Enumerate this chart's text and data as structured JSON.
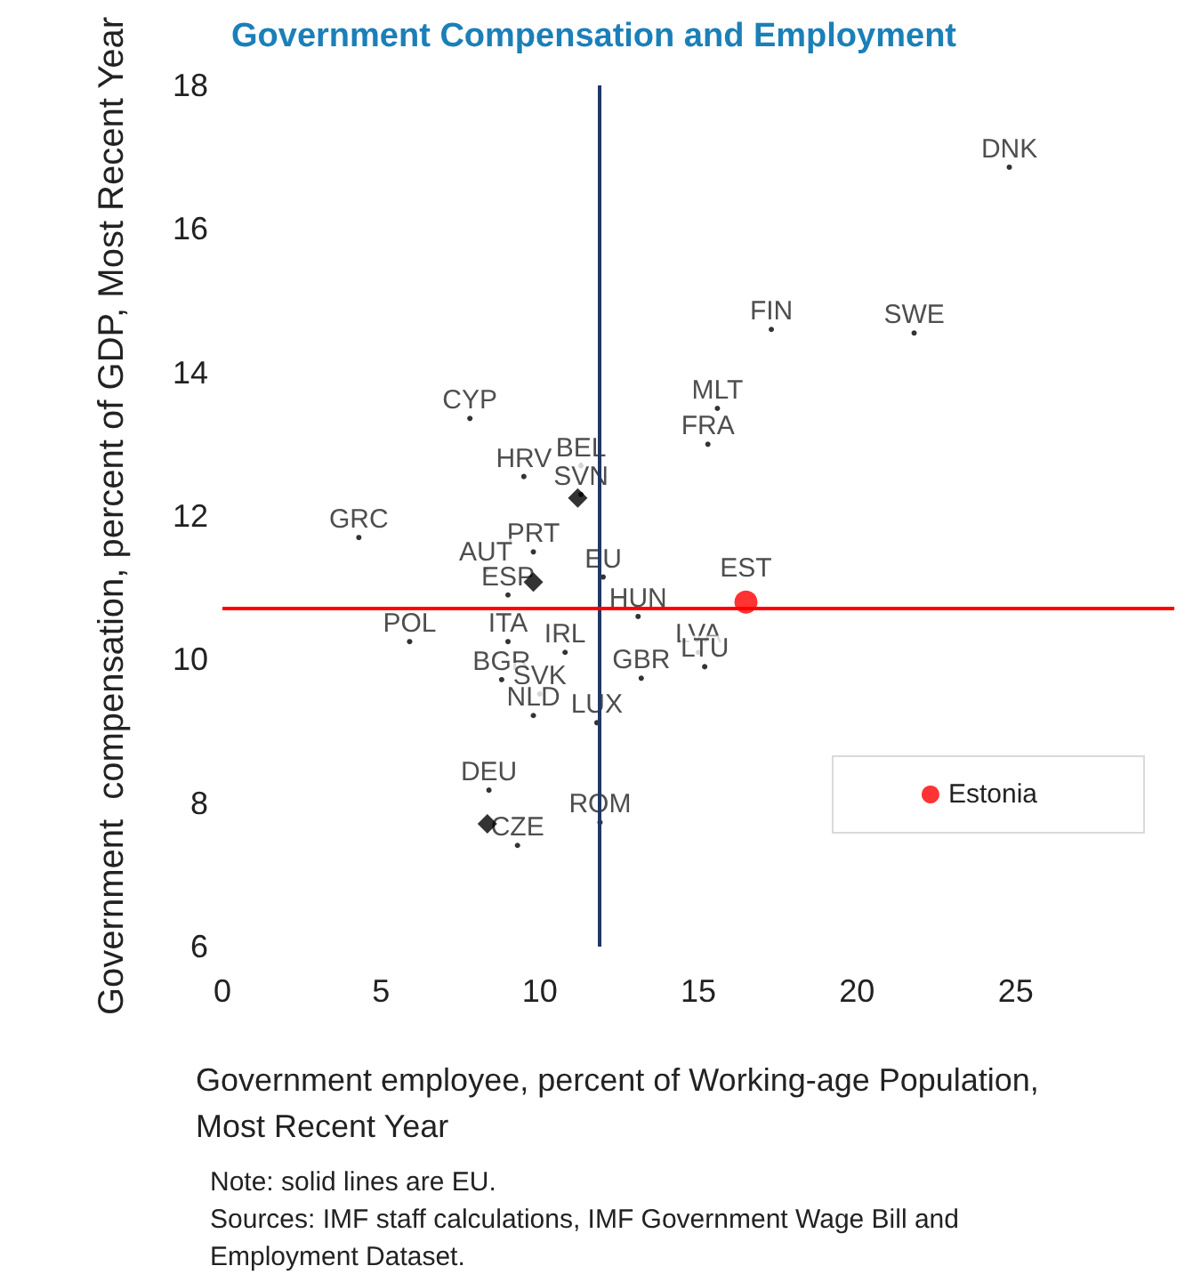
{
  "chart_data": {
    "type": "scatter",
    "title": "Government Compensation and Employment",
    "xlabel": "Government employee, percent of Working-age Population, Most Recent Year",
    "ylabel": "Government  compensation, percent of GDP, Most Recent Year",
    "xlim": [
      0,
      30
    ],
    "xticks": [
      0,
      5,
      10,
      15,
      20,
      25
    ],
    "ylim": [
      6,
      18
    ],
    "yticks": [
      6,
      8,
      10,
      12,
      14,
      16,
      18
    ],
    "grid": false,
    "legend": "bottom right",
    "series": [
      {
        "color": "#000000",
        "marker": "circle",
        "x": [
          24.8,
          17.3,
          21.8,
          15.6,
          15.3,
          7.8,
          9.5,
          11.3,
          11.3,
          4.3,
          9.8,
          8.3,
          9.0,
          12.0,
          5.9,
          9.0,
          13.1,
          10.8,
          15.0,
          15.2,
          13.2,
          8.8,
          10.0,
          9.8,
          11.8,
          8.4,
          9.3,
          11.9
        ],
        "values": [
          16.86,
          14.6,
          14.55,
          13.5,
          13.0,
          13.36,
          12.55,
          12.7,
          12.3,
          11.7,
          11.5,
          11.25,
          10.9,
          11.15,
          10.25,
          10.25,
          10.6,
          10.1,
          10.1,
          9.9,
          9.74,
          9.72,
          9.52,
          9.22,
          9.12,
          8.18,
          7.41,
          7.73
        ],
        "value_labels": [
          "DNK",
          "FIN",
          "SWE",
          "MLT",
          "FRA",
          "CYP",
          "HRV",
          "BEL",
          "SVN",
          "GRC",
          "PRT",
          "AUT",
          "ESP",
          "EU",
          "POL",
          "ITA",
          "HUN",
          "IRL",
          "LVA",
          "LTU",
          "GBR",
          "BGR",
          "SVK",
          "NLD",
          "LUX",
          "DEU",
          "CZE",
          "ROM"
        ]
      },
      {
        "color": "#000000",
        "marker": "diamond",
        "x": [
          11.2,
          9.8,
          8.35
        ],
        "values": [
          12.25,
          11.08,
          7.71
        ]
      },
      {
        "name": "Estonia",
        "color": "#ff0000",
        "marker": "circle",
        "x": [
          16.5
        ],
        "values": [
          10.8
        ],
        "value_labels": [
          "EST"
        ]
      }
    ],
    "ref_lines": [
      {
        "axis": "x",
        "value": 11.85,
        "color": "#1f3864",
        "line_style": "solid"
      },
      {
        "axis": "y",
        "value": 10.71,
        "color": "#ff0000",
        "line_style": "solid"
      }
    ],
    "annotations": [
      "Note: solid lines are EU.",
      "Sources: IMF staff calculations, IMF Government Wage Bill and Employment Dataset."
    ]
  }
}
